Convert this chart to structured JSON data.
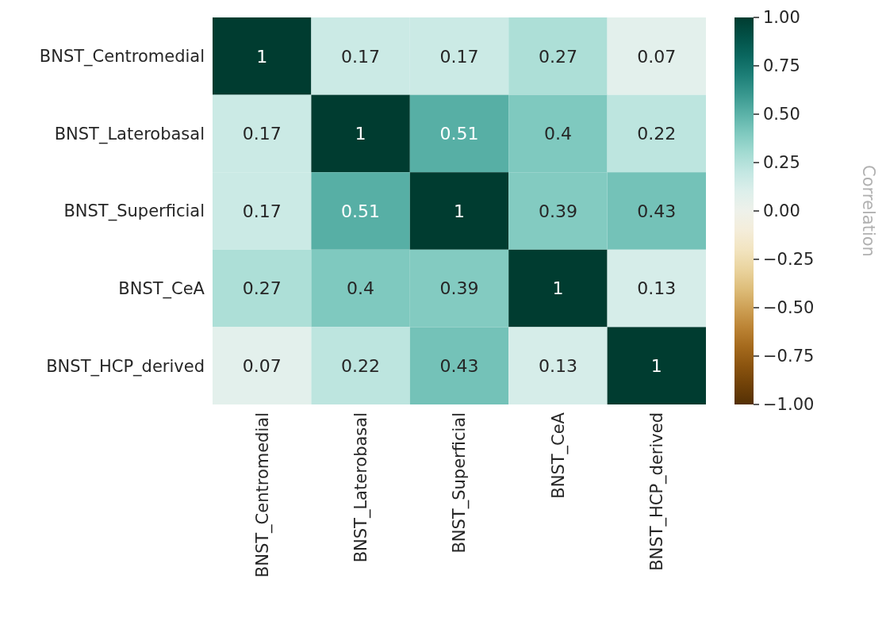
{
  "chart_data": {
    "type": "heatmap",
    "categories": [
      "BNST_Centromedial",
      "BNST_Laterobasal",
      "BNST_Superficial",
      "BNST_CeA",
      "BNST_HCP_derived"
    ],
    "y_categories": [
      "BNST_Centromedial",
      "BNST_Laterobasal",
      "BNST_Superficial",
      "BNST_CeA",
      "BNST_HCP_derived"
    ],
    "cells": [
      [
        1,
        0.17,
        0.17,
        0.27,
        0.07
      ],
      [
        0.17,
        1,
        0.51,
        0.4,
        0.22
      ],
      [
        0.17,
        0.51,
        1,
        0.39,
        0.43
      ],
      [
        0.27,
        0.4,
        0.39,
        1,
        0.13
      ],
      [
        0.07,
        0.22,
        0.43,
        0.13,
        1
      ]
    ],
    "data_labels": true,
    "clabel": "Correlation",
    "clim": [
      -1,
      1
    ],
    "cticks": [
      {
        "value": 1,
        "label": "1.00"
      },
      {
        "value": 0.75,
        "label": "0.75"
      },
      {
        "value": 0.5,
        "label": "0.50"
      },
      {
        "value": 0.25,
        "label": "0.25"
      },
      {
        "value": 0,
        "label": "0.00"
      },
      {
        "value": -0.25,
        "label": "−0.25"
      },
      {
        "value": -0.5,
        "label": "−0.50"
      },
      {
        "value": -0.75,
        "label": "−0.75"
      },
      {
        "value": -1,
        "label": "−1.00"
      }
    ]
  }
}
